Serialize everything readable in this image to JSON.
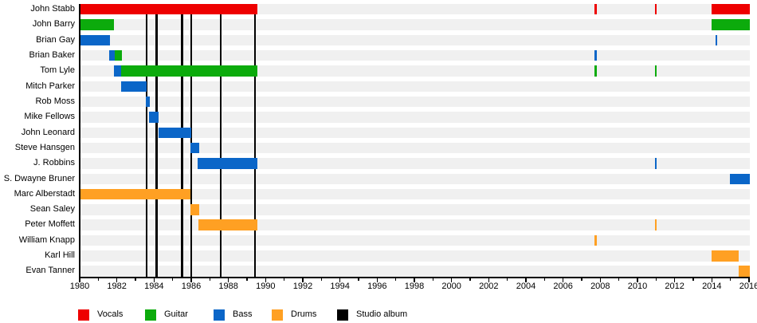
{
  "chart_data": {
    "type": "gantt",
    "description": "Band members timeline, roles by color, black vertical lines mark studio albums",
    "x_axis": {
      "min": 1980,
      "max": 2016,
      "major_tick_step": 2,
      "minor_tick_step": 1,
      "tick_labels": [
        "1980",
        "1982",
        "1984",
        "1986",
        "1988",
        "1990",
        "1992",
        "1994",
        "1996",
        "1998",
        "2000",
        "2002",
        "2004",
        "2006",
        "2008",
        "2010",
        "2012",
        "2014",
        "2016"
      ]
    },
    "legend": [
      {
        "label": "Vocals",
        "color": "#ee0000"
      },
      {
        "label": "Guitar",
        "color": "#0cab0c"
      },
      {
        "label": "Bass",
        "color": "#0b66c8"
      },
      {
        "label": "Drums",
        "color": "#ffa023"
      },
      {
        "label": "Studio album",
        "color": "#000000"
      }
    ],
    "album_release_lines": [
      1983.6,
      1984.14,
      1985.51,
      1986.0,
      1987.57,
      1989.43
    ],
    "members": [
      {
        "name": "John Stabb",
        "segments": [
          {
            "role": "Vocals",
            "start": 1980.0,
            "end": 1989.55
          },
          {
            "role": "Vocals",
            "start": 2007.7,
            "end": 2007.83
          },
          {
            "role": "Vocals",
            "start": 2010.95,
            "end": 2011.04
          },
          {
            "role": "Vocals",
            "start": 2014.0,
            "end": 2016.05
          }
        ]
      },
      {
        "name": "John Barry",
        "segments": [
          {
            "role": "Guitar",
            "start": 1980.0,
            "end": 1981.83
          },
          {
            "role": "Guitar",
            "start": 2014.0,
            "end": 2016.05
          }
        ]
      },
      {
        "name": "Brian Gay",
        "segments": [
          {
            "role": "Bass",
            "start": 1980.0,
            "end": 1981.65
          },
          {
            "role": "Bass",
            "start": 2014.21,
            "end": 2014.3
          }
        ]
      },
      {
        "name": "Brian Baker",
        "segments": [
          {
            "role": "Bass",
            "start": 1981.6,
            "end": 1981.9
          },
          {
            "role": "Guitar",
            "start": 1981.9,
            "end": 1982.26
          },
          {
            "role": "Bass",
            "start": 2007.7,
            "end": 2007.83
          }
        ]
      },
      {
        "name": "Tom Lyle",
        "segments": [
          {
            "role": "Bass",
            "start": 1981.83,
            "end": 1982.24
          },
          {
            "role": "Guitar",
            "start": 1982.24,
            "end": 1989.55
          },
          {
            "role": "Guitar",
            "start": 2007.7,
            "end": 2007.83
          },
          {
            "role": "Guitar",
            "start": 2010.95,
            "end": 2011.04
          }
        ]
      },
      {
        "name": "Mitch Parker",
        "segments": [
          {
            "role": "Bass",
            "start": 1982.22,
            "end": 1983.6
          }
        ]
      },
      {
        "name": "Rob Moss",
        "segments": [
          {
            "role": "Bass",
            "start": 1983.57,
            "end": 1983.79
          }
        ]
      },
      {
        "name": "Mike Fellows",
        "segments": [
          {
            "role": "Bass",
            "start": 1983.74,
            "end": 1984.26
          }
        ]
      },
      {
        "name": "John Leonard",
        "segments": [
          {
            "role": "Bass",
            "start": 1984.26,
            "end": 1986.0
          }
        ]
      },
      {
        "name": "Steve Hansgen",
        "segments": [
          {
            "role": "Bass",
            "start": 1985.95,
            "end": 1986.43
          }
        ]
      },
      {
        "name": "J. Robbins",
        "segments": [
          {
            "role": "Bass",
            "start": 1986.36,
            "end": 1989.57
          },
          {
            "role": "Bass",
            "start": 2010.95,
            "end": 2011.04
          }
        ]
      },
      {
        "name": "S. Dwayne Bruner",
        "segments": [
          {
            "role": "Bass",
            "start": 2014.96,
            "end": 2016.05
          }
        ]
      },
      {
        "name": "Marc Alberstadt",
        "segments": [
          {
            "role": "Drums",
            "start": 1980.0,
            "end": 1985.97
          }
        ]
      },
      {
        "name": "Sean Saley",
        "segments": [
          {
            "role": "Drums",
            "start": 1985.97,
            "end": 1986.43
          }
        ]
      },
      {
        "name": "Peter Moffett",
        "segments": [
          {
            "role": "Drums",
            "start": 1986.38,
            "end": 1989.57
          },
          {
            "role": "Drums",
            "start": 2010.95,
            "end": 2011.04
          }
        ]
      },
      {
        "name": "William Knapp",
        "segments": [
          {
            "role": "Drums",
            "start": 2007.7,
            "end": 2007.83
          }
        ]
      },
      {
        "name": "Karl Hill",
        "segments": [
          {
            "role": "Drums",
            "start": 2014.0,
            "end": 2015.43
          }
        ]
      },
      {
        "name": "Evan Tanner",
        "segments": [
          {
            "role": "Drums",
            "start": 2015.43,
            "end": 2016.05
          }
        ]
      }
    ]
  },
  "colors": {
    "row_stripe": "#f0f0f0",
    "background": "#ffffff",
    "axis": "#000000",
    "album_line": "#000000",
    "text": "#000000"
  }
}
